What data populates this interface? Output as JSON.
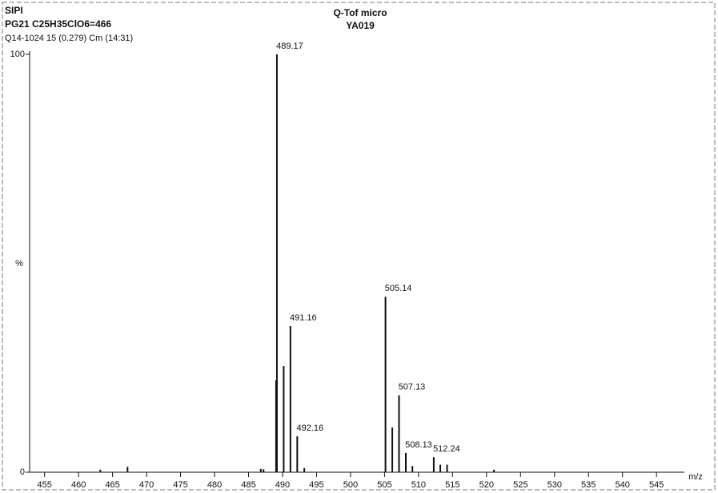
{
  "chart_data": {
    "type": "stick",
    "title": "Q-Tof micro",
    "subtitle": "YA019",
    "header": [
      "SIPI",
      "PG21  C25H35ClO6=466",
      "Q14-1024 15 (0.279) Cm (14:31)"
    ],
    "x_label": "m/z",
    "y_label": "%",
    "xlim": [
      452.8,
      549.1
    ],
    "ylim": [
      0,
      100
    ],
    "xticks": [
      455,
      460,
      465,
      470,
      475,
      480,
      485,
      490,
      495,
      500,
      505,
      510,
      515,
      520,
      525,
      530,
      535,
      540,
      545
    ],
    "yticks": [
      0,
      100
    ],
    "color": "#111111",
    "series": [
      {
        "labeled": true,
        "x": [
          489.17,
          491.16,
          492.16,
          505.14,
          507.13,
          508.13,
          512.24
        ],
        "values": [
          100,
          35,
          8.6,
          42,
          18.4,
          4.6,
          3.6
        ]
      },
      {
        "labeled": false,
        "x": [
          463.2,
          467.2,
          486.8,
          487.2,
          489.05,
          490.17,
          493.2,
          506.14,
          509.1,
          513.2,
          514.2,
          521.1
        ],
        "values": [
          0.6,
          1.3,
          0.8,
          0.7,
          22,
          25.4,
          1,
          10.7,
          1.5,
          1.8,
          1.8,
          0.6
        ]
      }
    ]
  }
}
